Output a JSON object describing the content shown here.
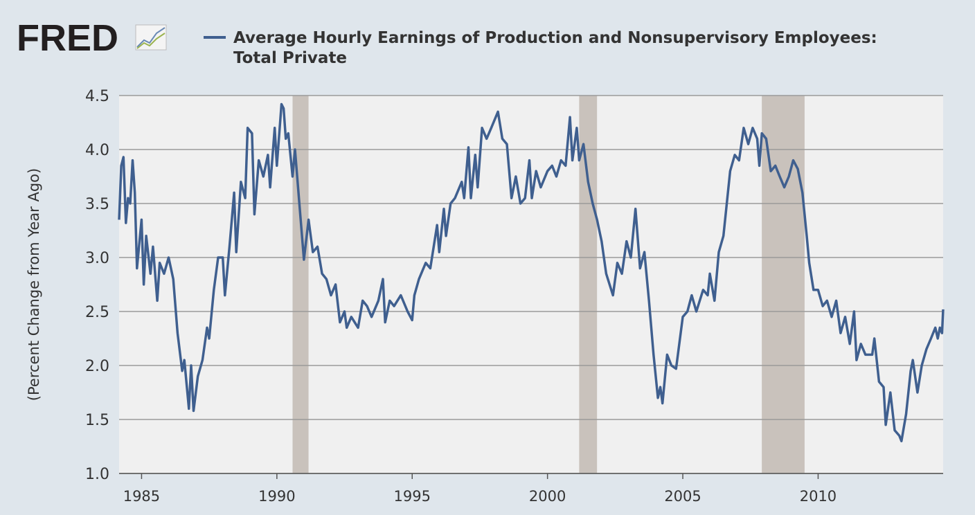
{
  "chart_data": {
    "type": "line",
    "logo": "FRED",
    "ylabel": "(Percent Change from Year Ago)",
    "x": [
      1984.17,
      1984.25,
      1984.33,
      1984.42,
      1984.5,
      1984.58,
      1984.67,
      1984.75,
      1984.83,
      1985.0,
      1985.08,
      1985.17,
      1985.33,
      1985.42,
      1985.58,
      1985.67,
      1985.83,
      1986.0,
      1986.17,
      1986.33,
      1986.5,
      1986.58,
      1986.75,
      1986.83,
      1986.92,
      1987.08,
      1987.25,
      1987.42,
      1987.5,
      1987.67,
      1987.83,
      1988.0,
      1988.08,
      1988.25,
      1988.42,
      1988.5,
      1988.67,
      1988.83,
      1988.92,
      1989.08,
      1989.17,
      1989.33,
      1989.5,
      1989.67,
      1989.75,
      1989.92,
      1990.0,
      1990.17,
      1990.25,
      1990.33,
      1990.42,
      1990.58,
      1990.67,
      1990.83,
      1991.0,
      1991.17,
      1991.33,
      1991.5,
      1991.67,
      1991.83,
      1992.0,
      1992.17,
      1992.33,
      1992.5,
      1992.58,
      1992.75,
      1993.0,
      1993.17,
      1993.33,
      1993.5,
      1993.75,
      1993.92,
      1994.0,
      1994.17,
      1994.33,
      1994.58,
      1994.83,
      1995.0,
      1995.08,
      1995.25,
      1995.5,
      1995.67,
      1995.92,
      1996.0,
      1996.17,
      1996.25,
      1996.42,
      1996.58,
      1996.83,
      1996.92,
      1997.08,
      1997.17,
      1997.33,
      1997.42,
      1997.58,
      1997.75,
      1997.92,
      1998.17,
      1998.33,
      1998.5,
      1998.67,
      1998.83,
      1999.0,
      1999.17,
      1999.33,
      1999.42,
      1999.58,
      1999.75,
      2000.0,
      2000.17,
      2000.33,
      2000.5,
      2000.67,
      2000.83,
      2000.92,
      2001.08,
      2001.17,
      2001.33,
      2001.5,
      2001.67,
      2001.83,
      2002.0,
      2002.17,
      2002.42,
      2002.58,
      2002.75,
      2002.92,
      2003.08,
      2003.25,
      2003.42,
      2003.58,
      2003.75,
      2003.92,
      2004.08,
      2004.17,
      2004.25,
      2004.42,
      2004.58,
      2004.75,
      2005.0,
      2005.17,
      2005.33,
      2005.5,
      2005.75,
      2005.92,
      2006.0,
      2006.17,
      2006.33,
      2006.5,
      2006.75,
      2006.92,
      2007.08,
      2007.25,
      2007.42,
      2007.58,
      2007.75,
      2007.83,
      2007.92,
      2008.08,
      2008.25,
      2008.42,
      2008.58,
      2008.75,
      2008.92,
      2009.08,
      2009.25,
      2009.42,
      2009.58,
      2009.67,
      2009.83,
      2010.0,
      2010.17,
      2010.33,
      2010.5,
      2010.67,
      2010.83,
      2011.0,
      2011.17,
      2011.33,
      2011.42,
      2011.58,
      2011.75,
      2012.0,
      2012.08,
      2012.25,
      2012.42,
      2012.5,
      2012.67,
      2012.83,
      2013.0,
      2013.08,
      2013.25,
      2013.42,
      2013.5,
      2013.67,
      2013.83,
      2014.0,
      2014.17,
      2014.33,
      2014.42,
      2014.5,
      2014.58,
      2014.62
    ],
    "series": [
      {
        "name": "Average Hourly Earnings of Production and Nonsupervisory Employees: Total Private",
        "color": "#3f5f8f",
        "values": [
          3.35,
          3.85,
          3.93,
          3.32,
          3.55,
          3.5,
          3.9,
          3.6,
          2.9,
          3.35,
          2.75,
          3.2,
          2.85,
          3.1,
          2.6,
          2.95,
          2.85,
          3.0,
          2.8,
          2.3,
          1.95,
          2.05,
          1.6,
          2.0,
          1.58,
          1.9,
          2.05,
          2.35,
          2.25,
          2.7,
          3.0,
          3.0,
          2.65,
          3.1,
          3.6,
          3.05,
          3.7,
          3.55,
          4.2,
          4.15,
          3.4,
          3.9,
          3.75,
          3.95,
          3.65,
          4.2,
          3.85,
          4.42,
          4.38,
          4.1,
          4.15,
          3.75,
          4.0,
          3.5,
          2.98,
          3.35,
          3.05,
          3.1,
          2.85,
          2.8,
          2.65,
          2.75,
          2.4,
          2.5,
          2.35,
          2.45,
          2.35,
          2.6,
          2.55,
          2.45,
          2.6,
          2.8,
          2.4,
          2.6,
          2.55,
          2.65,
          2.5,
          2.42,
          2.65,
          2.8,
          2.95,
          2.9,
          3.3,
          3.05,
          3.45,
          3.2,
          3.5,
          3.55,
          3.7,
          3.55,
          4.02,
          3.55,
          3.95,
          3.65,
          4.2,
          4.1,
          4.2,
          4.35,
          4.1,
          4.05,
          3.55,
          3.75,
          3.5,
          3.55,
          3.9,
          3.55,
          3.8,
          3.65,
          3.8,
          3.85,
          3.75,
          3.9,
          3.85,
          4.3,
          3.9,
          4.2,
          3.9,
          4.05,
          3.7,
          3.5,
          3.35,
          3.15,
          2.85,
          2.65,
          2.95,
          2.85,
          3.15,
          3.0,
          3.45,
          2.9,
          3.05,
          2.6,
          2.1,
          1.7,
          1.8,
          1.65,
          2.1,
          2.0,
          1.97,
          2.45,
          2.5,
          2.65,
          2.5,
          2.7,
          2.65,
          2.85,
          2.6,
          3.05,
          3.2,
          3.8,
          3.95,
          3.9,
          4.2,
          4.05,
          4.2,
          4.1,
          3.85,
          4.15,
          4.1,
          3.8,
          3.85,
          3.75,
          3.65,
          3.75,
          3.9,
          3.82,
          3.6,
          3.2,
          2.95,
          2.7,
          2.7,
          2.55,
          2.6,
          2.45,
          2.6,
          2.3,
          2.45,
          2.2,
          2.5,
          2.05,
          2.2,
          2.1,
          2.1,
          2.25,
          1.85,
          1.8,
          1.45,
          1.75,
          1.4,
          1.35,
          1.3,
          1.55,
          1.95,
          2.05,
          1.75,
          2.0,
          2.15,
          2.25,
          2.35,
          2.25,
          2.35,
          2.3,
          2.52
        ]
      }
    ],
    "shaded_ranges": [
      [
        1990.58,
        1991.17
      ],
      [
        2001.17,
        2001.83
      ],
      [
        2007.92,
        2009.5
      ]
    ],
    "shade_color": "#c9c2bc",
    "xlim": [
      1984.17,
      2014.62
    ],
    "xticks": [
      1985,
      1990,
      1995,
      2000,
      2005,
      2010
    ],
    "ylim": [
      1,
      4.5
    ],
    "yticks": [
      {
        "value": 1,
        "label": "1.0"
      },
      1.5,
      {
        "value": 2,
        "label": "2.0"
      },
      2.5,
      {
        "value": 3,
        "label": "3.0"
      },
      3.5,
      {
        "value": 4,
        "label": "4.0"
      },
      4.5
    ],
    "grid": true
  }
}
